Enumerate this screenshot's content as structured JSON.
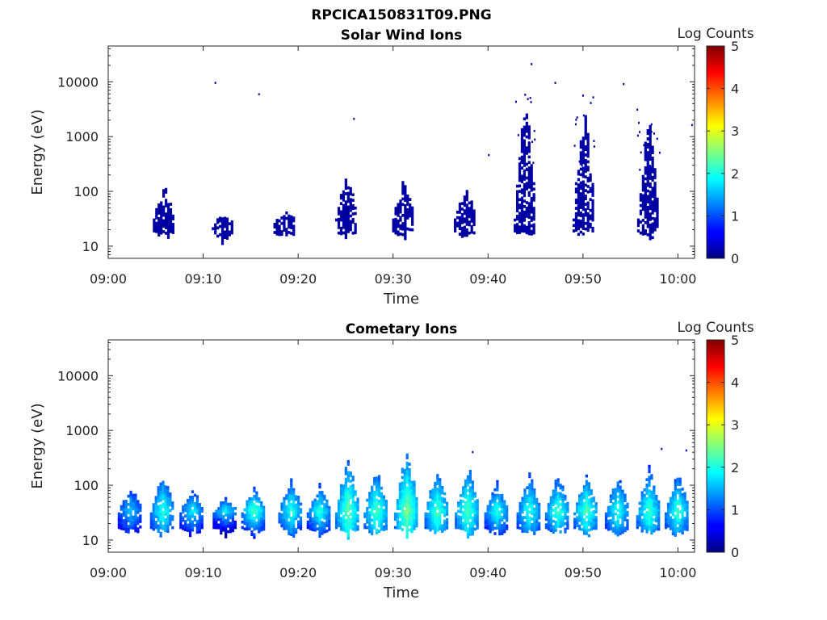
{
  "figure": {
    "title": "RPCICA150831T09.PNG"
  },
  "colorbar": {
    "label": "Log Counts",
    "range": [
      0,
      5
    ],
    "ticks": [
      "0",
      "1",
      "2",
      "3",
      "4",
      "5"
    ]
  },
  "x_ticks": [
    "09:00",
    "09:10",
    "09:20",
    "09:30",
    "09:40",
    "09:50",
    "10:00"
  ],
  "y_ticks": [
    "10",
    "100",
    "1000",
    "10000"
  ],
  "chart_data": [
    {
      "type": "heatmap",
      "title": "Solar Wind Ions",
      "xlabel": "Time",
      "ylabel": "Energy (eV)",
      "xlim": [
        "09:00",
        "10:01:45"
      ],
      "ylim": [
        6,
        45000
      ],
      "yscale": "log",
      "colorbar_label": "Log Counts",
      "clim": [
        0,
        5
      ],
      "bursts": [
        {
          "t_min": 5.8,
          "e_center": 32,
          "e_top": 140,
          "level": 0.1
        },
        {
          "t_min": 12.0,
          "e_center": 28,
          "e_top": 36,
          "level": 0.1
        },
        {
          "t_min": 18.5,
          "e_center": 30,
          "e_top": 45,
          "level": 0.1
        },
        {
          "t_min": 25.0,
          "e_center": 32,
          "e_top": 220,
          "level": 0.1
        },
        {
          "t_min": 31.0,
          "e_center": 32,
          "e_top": 220,
          "level": 0.1
        },
        {
          "t_min": 37.5,
          "e_center": 32,
          "e_top": 130,
          "level": 0.1
        },
        {
          "t_min": 43.8,
          "e_center": 32,
          "e_top": 9000,
          "level": 0.2
        },
        {
          "t_min": 50.0,
          "e_center": 32,
          "e_top": 6000,
          "level": 0.2
        },
        {
          "t_min": 56.8,
          "e_center": 32,
          "e_top": 4000,
          "level": 0.2
        }
      ],
      "isolated_points": [
        {
          "t_min": 11.2,
          "energy": 10000
        },
        {
          "t_min": 15.8,
          "energy": 6200
        },
        {
          "t_min": 25.8,
          "energy": 2200
        },
        {
          "t_min": 40.0,
          "energy": 480
        },
        {
          "t_min": 44.5,
          "energy": 22000
        },
        {
          "t_min": 47.0,
          "energy": 10000
        },
        {
          "t_min": 54.2,
          "energy": 9500
        },
        {
          "t_min": 61.4,
          "energy": 1700
        }
      ]
    },
    {
      "type": "heatmap",
      "title": "Cometary Ions",
      "xlabel": "Time",
      "ylabel": "Energy (eV)",
      "xlim": [
        "09:00",
        "10:01:45"
      ],
      "ylim": [
        6,
        45000
      ],
      "yscale": "log",
      "colorbar_label": "Log Counts",
      "clim": [
        0,
        5
      ],
      "bursts": [
        {
          "t_min": 2.3,
          "e_center": 32,
          "e_top": 110,
          "level": 1.4
        },
        {
          "t_min": 5.7,
          "e_center": 32,
          "e_top": 200,
          "level": 1.8
        },
        {
          "t_min": 8.8,
          "e_center": 32,
          "e_top": 95,
          "level": 1.6
        },
        {
          "t_min": 12.3,
          "e_center": 32,
          "e_top": 65,
          "level": 1.6
        },
        {
          "t_min": 15.3,
          "e_center": 32,
          "e_top": 95,
          "level": 2.0
        },
        {
          "t_min": 19.2,
          "e_center": 32,
          "e_top": 150,
          "level": 1.8
        },
        {
          "t_min": 22.2,
          "e_center": 32,
          "e_top": 110,
          "level": 1.8
        },
        {
          "t_min": 25.2,
          "e_center": 32,
          "e_top": 400,
          "level": 2.1
        },
        {
          "t_min": 28.2,
          "e_center": 32,
          "e_top": 250,
          "level": 2.0
        },
        {
          "t_min": 31.4,
          "e_center": 32,
          "e_top": 550,
          "level": 2.2
        },
        {
          "t_min": 34.6,
          "e_center": 32,
          "e_top": 250,
          "level": 2.0
        },
        {
          "t_min": 37.8,
          "e_center": 32,
          "e_top": 300,
          "level": 2.0
        },
        {
          "t_min": 40.9,
          "e_center": 32,
          "e_top": 120,
          "level": 1.8
        },
        {
          "t_min": 44.3,
          "e_center": 32,
          "e_top": 190,
          "level": 1.8
        },
        {
          "t_min": 47.3,
          "e_center": 32,
          "e_top": 180,
          "level": 1.9
        },
        {
          "t_min": 50.3,
          "e_center": 32,
          "e_top": 190,
          "level": 2.0
        },
        {
          "t_min": 53.6,
          "e_center": 32,
          "e_top": 180,
          "level": 1.8
        },
        {
          "t_min": 56.9,
          "e_center": 32,
          "e_top": 240,
          "level": 1.9
        },
        {
          "t_min": 59.9,
          "e_center": 32,
          "e_top": 190,
          "level": 1.9
        }
      ],
      "isolated_points": [
        {
          "t_min": 38.3,
          "energy": 420
        },
        {
          "t_min": 58.2,
          "energy": 480
        },
        {
          "t_min": 60.8,
          "energy": 450
        }
      ]
    }
  ]
}
